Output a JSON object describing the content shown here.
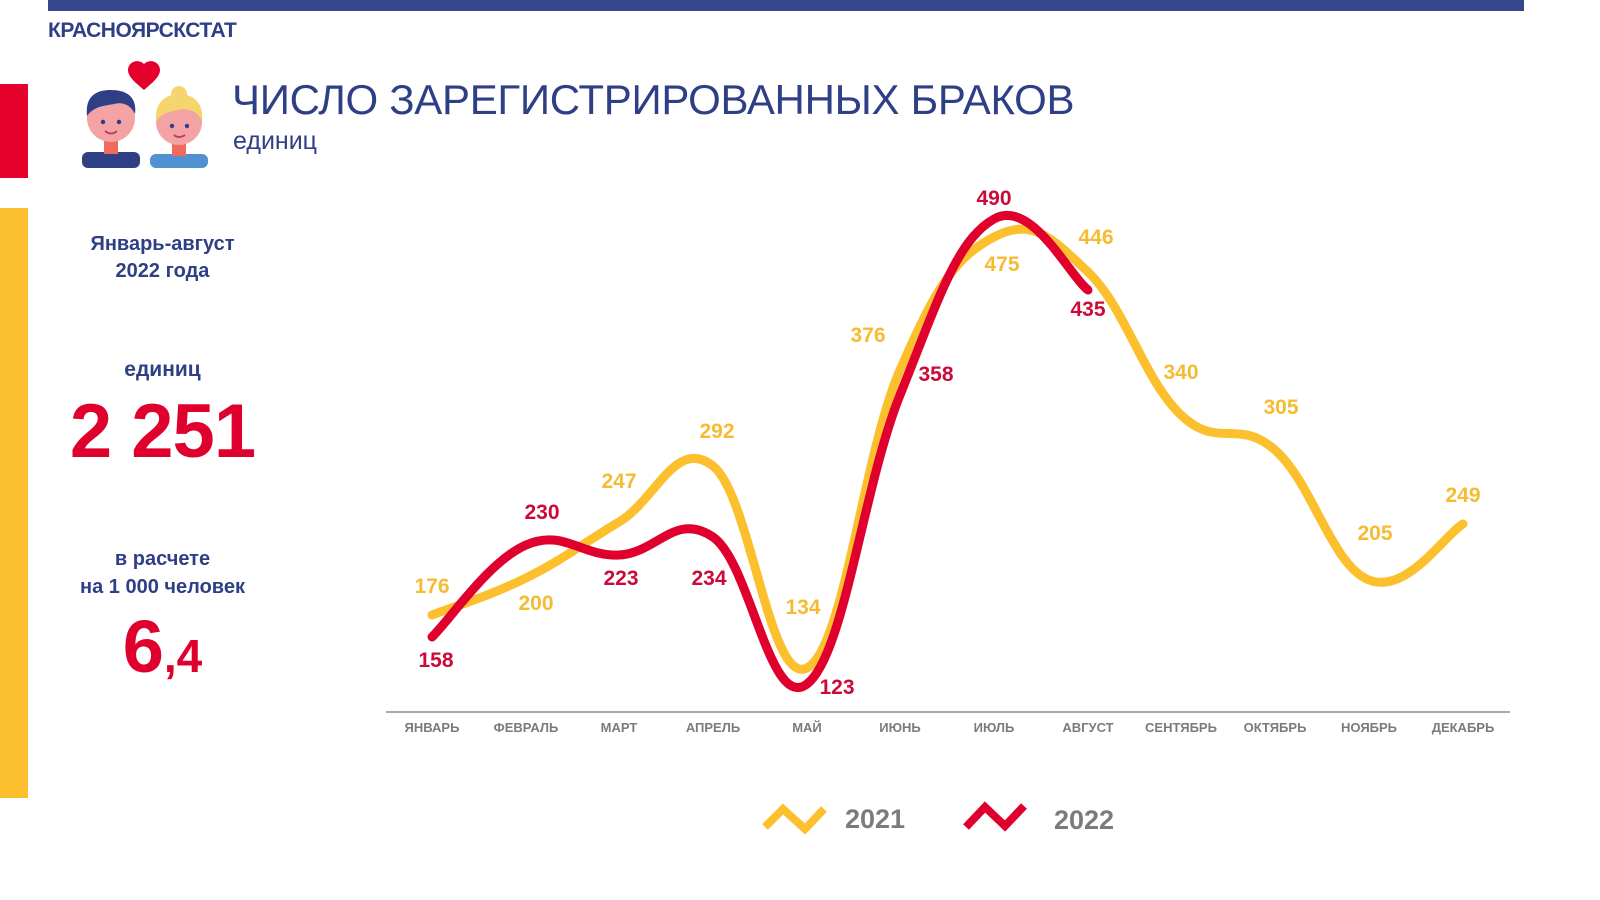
{
  "header": {
    "brand": "КРАСНОЯРСКСТАТ",
    "title": "ЧИСЛО ЗАРЕГИСТРИРОВАННЫХ БРАКОВ",
    "subtitle": "единиц"
  },
  "colors": {
    "navy": "#2f3f85",
    "red": "#e0002d",
    "yellow": "#fcc02e",
    "axis_gray": "#7b7b7b"
  },
  "sidebar": {
    "period_line1": "Январь-август",
    "period_line2": "2022 года",
    "units_label": "единиц",
    "total": "2 251",
    "per_line1": "в расчете",
    "per_line2": "на 1 000 человек",
    "rate_int": "6",
    "rate_dec": ",4"
  },
  "chart_data": {
    "type": "line",
    "title": "ЧИСЛО ЗАРЕГИСТРИРОВАННЫХ БРАКОВ",
    "subtitle": "единиц",
    "xlabel": "",
    "ylabel": "",
    "grid": false,
    "legend_position": "bottom",
    "categories": [
      "ЯНВАРЬ",
      "ФЕВРАЛЬ",
      "МАРТ",
      "АПРЕЛЬ",
      "МАЙ",
      "ИЮНЬ",
      "ИЮЛЬ",
      "АВГУСТ",
      "СЕНТЯБРЬ",
      "ОКТЯБРЬ",
      "НОЯБРЬ",
      "ДЕКАБРЬ"
    ],
    "series": [
      {
        "name": "2021",
        "color": "#fcc02e",
        "values": [
          176,
          200,
          247,
          292,
          134,
          376,
          475,
          446,
          340,
          305,
          205,
          249
        ]
      },
      {
        "name": "2022",
        "color": "#e0002d",
        "values": [
          158,
          230,
          223,
          234,
          123,
          358,
          490,
          435
        ]
      }
    ]
  },
  "legend": {
    "items": [
      {
        "label": "2021",
        "color": "#fcc02e"
      },
      {
        "label": "2022",
        "color": "#e0002d"
      }
    ]
  }
}
